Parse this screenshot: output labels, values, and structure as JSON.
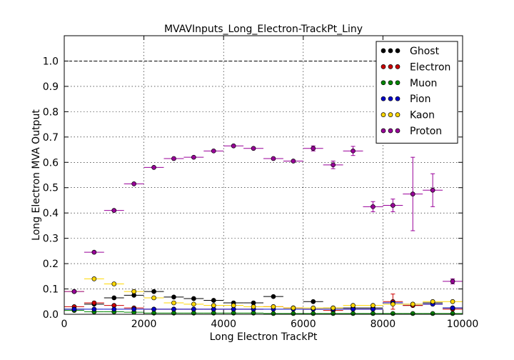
{
  "chart_data": {
    "type": "scatter",
    "title": "MVAVInputs_Long_Electron-TrackPt_Liny",
    "xlabel": "Long Electron TrackPt",
    "ylabel": "Long Electron MVA Output",
    "xlim": [
      0,
      10000
    ],
    "ylim": [
      0,
      1.1
    ],
    "xticks": [
      0,
      2000,
      4000,
      6000,
      8000,
      10000
    ],
    "xtick_labels": [
      "0",
      "2000",
      "4000",
      "6000",
      "8000",
      "10000"
    ],
    "yticks": [
      0.0,
      0.1,
      0.2,
      0.3,
      0.4,
      0.5,
      0.6,
      0.7,
      0.8,
      0.9,
      1.0
    ],
    "ytick_labels": [
      "0.0",
      "0.1",
      "0.2",
      "0.3",
      "0.4",
      "0.5",
      "0.6",
      "0.7",
      "0.8",
      "0.9",
      "1.0"
    ],
    "grid": true,
    "reference_line_y": 1.0,
    "legend_position": "top-right",
    "x": [
      250,
      750,
      1250,
      1750,
      2250,
      2750,
      3250,
      3750,
      4250,
      4750,
      5250,
      5750,
      6250,
      6750,
      7250,
      7750,
      8250,
      8750,
      9250,
      9750
    ],
    "x_bin_halfwidth": 250,
    "series": [
      {
        "name": "Ghost",
        "color": "#000000",
        "values": [
          0.02,
          0.04,
          0.065,
          0.075,
          0.09,
          0.068,
          0.062,
          0.055,
          0.045,
          0.045,
          0.07,
          0.025,
          0.05,
          0.025,
          0.025,
          0.025,
          0.045,
          0.035,
          0.045,
          0.025
        ],
        "errors": [
          0.003,
          0.003,
          0.003,
          0.003,
          0.003,
          0.003,
          0.003,
          0.003,
          0.003,
          0.003,
          0.004,
          0.003,
          0.004,
          0.003,
          0.004,
          0.004,
          0.006,
          0.006,
          0.008,
          0.006
        ]
      },
      {
        "name": "Electron",
        "color": "#cc0000",
        "values": [
          0.03,
          0.045,
          0.035,
          0.025,
          0.02,
          0.02,
          0.02,
          0.02,
          0.02,
          0.02,
          0.03,
          0.025,
          0.02,
          0.015,
          0.02,
          0.02,
          0.05,
          0.035,
          0.04,
          0.02
        ],
        "errors": [
          0.003,
          0.003,
          0.003,
          0.003,
          0.003,
          0.003,
          0.003,
          0.003,
          0.003,
          0.003,
          0.004,
          0.003,
          0.004,
          0.003,
          0.004,
          0.004,
          0.03,
          0.006,
          0.006,
          0.005
        ]
      },
      {
        "name": "Muon",
        "color": "#008800",
        "values": [
          0.015,
          0.01,
          0.01,
          0.008,
          0.005,
          0.005,
          0.005,
          0.005,
          0.005,
          0.005,
          0.003,
          0.003,
          0.003,
          0.003,
          0.003,
          0.003,
          0.003,
          0.003,
          0.003,
          0.003
        ],
        "errors": [
          0.002,
          0.002,
          0.002,
          0.002,
          0.002,
          0.002,
          0.002,
          0.002,
          0.002,
          0.002,
          0.002,
          0.002,
          0.002,
          0.002,
          0.002,
          0.002,
          0.002,
          0.002,
          0.002,
          0.002
        ]
      },
      {
        "name": "Pion",
        "color": "#0000cc",
        "values": [
          0.02,
          0.02,
          0.02,
          0.02,
          0.02,
          0.02,
          0.02,
          0.02,
          0.02,
          0.02,
          0.02,
          0.02,
          0.02,
          0.02,
          0.02,
          0.02,
          0.045,
          0.04,
          0.04,
          0.025
        ],
        "errors": [
          0.002,
          0.002,
          0.002,
          0.002,
          0.002,
          0.002,
          0.002,
          0.002,
          0.002,
          0.002,
          0.002,
          0.002,
          0.002,
          0.003,
          0.003,
          0.003,
          0.005,
          0.005,
          0.006,
          0.005
        ]
      },
      {
        "name": "Kaon",
        "color": "#ffd700",
        "values": [
          0.09,
          0.14,
          0.12,
          0.09,
          0.065,
          0.045,
          0.04,
          0.035,
          0.035,
          0.03,
          0.03,
          0.025,
          0.025,
          0.025,
          0.035,
          0.035,
          0.04,
          0.04,
          0.05,
          0.05
        ],
        "errors": [
          0.003,
          0.003,
          0.003,
          0.003,
          0.003,
          0.003,
          0.003,
          0.003,
          0.003,
          0.003,
          0.003,
          0.003,
          0.003,
          0.004,
          0.004,
          0.005,
          0.006,
          0.006,
          0.007,
          0.007
        ]
      },
      {
        "name": "Proton",
        "color": "#990099",
        "values": [
          0.09,
          0.245,
          0.41,
          0.515,
          0.58,
          0.615,
          0.62,
          0.645,
          0.665,
          0.655,
          0.615,
          0.605,
          0.655,
          0.59,
          0.645,
          0.425,
          0.43,
          0.475,
          0.49,
          0.13
        ],
        "errors": [
          0.003,
          0.003,
          0.003,
          0.003,
          0.003,
          0.003,
          0.003,
          0.003,
          0.004,
          0.004,
          0.005,
          0.006,
          0.01,
          0.015,
          0.018,
          0.02,
          0.025,
          0.145,
          0.065,
          0.01
        ]
      }
    ]
  }
}
